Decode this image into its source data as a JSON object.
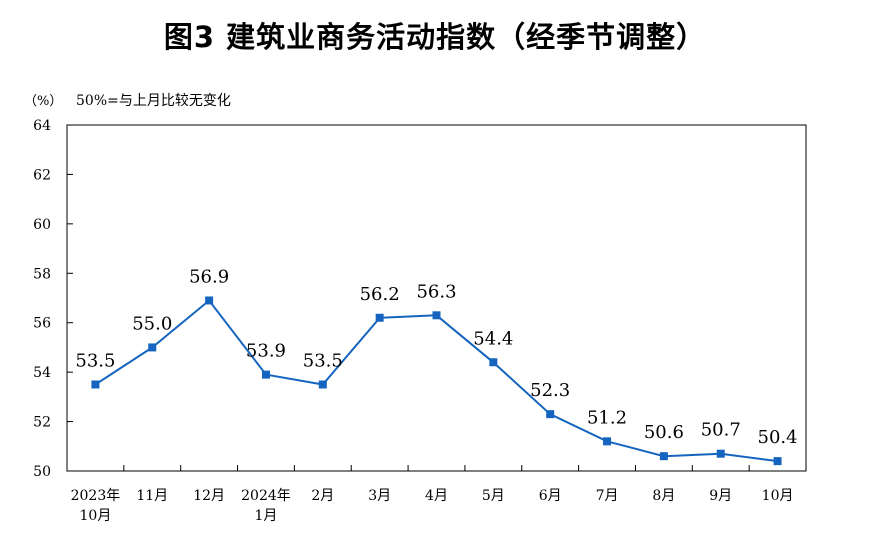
{
  "title": "图3  建筑业商务活动指数（经季节调整）",
  "unit_label": "（%）",
  "note": "50%=与上月比较无变化",
  "colors": {
    "series": "#1565c0",
    "axis": "#000000"
  },
  "chart_data": {
    "type": "line",
    "title": "图3  建筑业商务活动指数（经季节调整）",
    "ylabel": "（%）",
    "annotation": "50%=与上月比较无变化",
    "ylim": [
      50,
      64
    ],
    "yticks": [
      "50",
      "52",
      "54",
      "56",
      "58",
      "60",
      "62",
      "64"
    ],
    "categories": [
      [
        "2023年",
        "10月"
      ],
      [
        "11月"
      ],
      [
        "12月"
      ],
      [
        "2024年",
        "1月"
      ],
      [
        "2月"
      ],
      [
        "3月"
      ],
      [
        "4月"
      ],
      [
        "5月"
      ],
      [
        "6月"
      ],
      [
        "7月"
      ],
      [
        "8月"
      ],
      [
        "9月"
      ],
      [
        "10月"
      ]
    ],
    "values": [
      53.5,
      55.0,
      56.9,
      53.9,
      53.5,
      56.2,
      56.3,
      54.4,
      52.3,
      51.2,
      50.6,
      50.7,
      50.4
    ],
    "data_labels": [
      "53.5",
      "55.0",
      "56.9",
      "53.9",
      "53.5",
      "56.2",
      "56.3",
      "54.4",
      "52.3",
      "51.2",
      "50.6",
      "50.7",
      "50.4"
    ],
    "grid": false,
    "legend": "none"
  }
}
